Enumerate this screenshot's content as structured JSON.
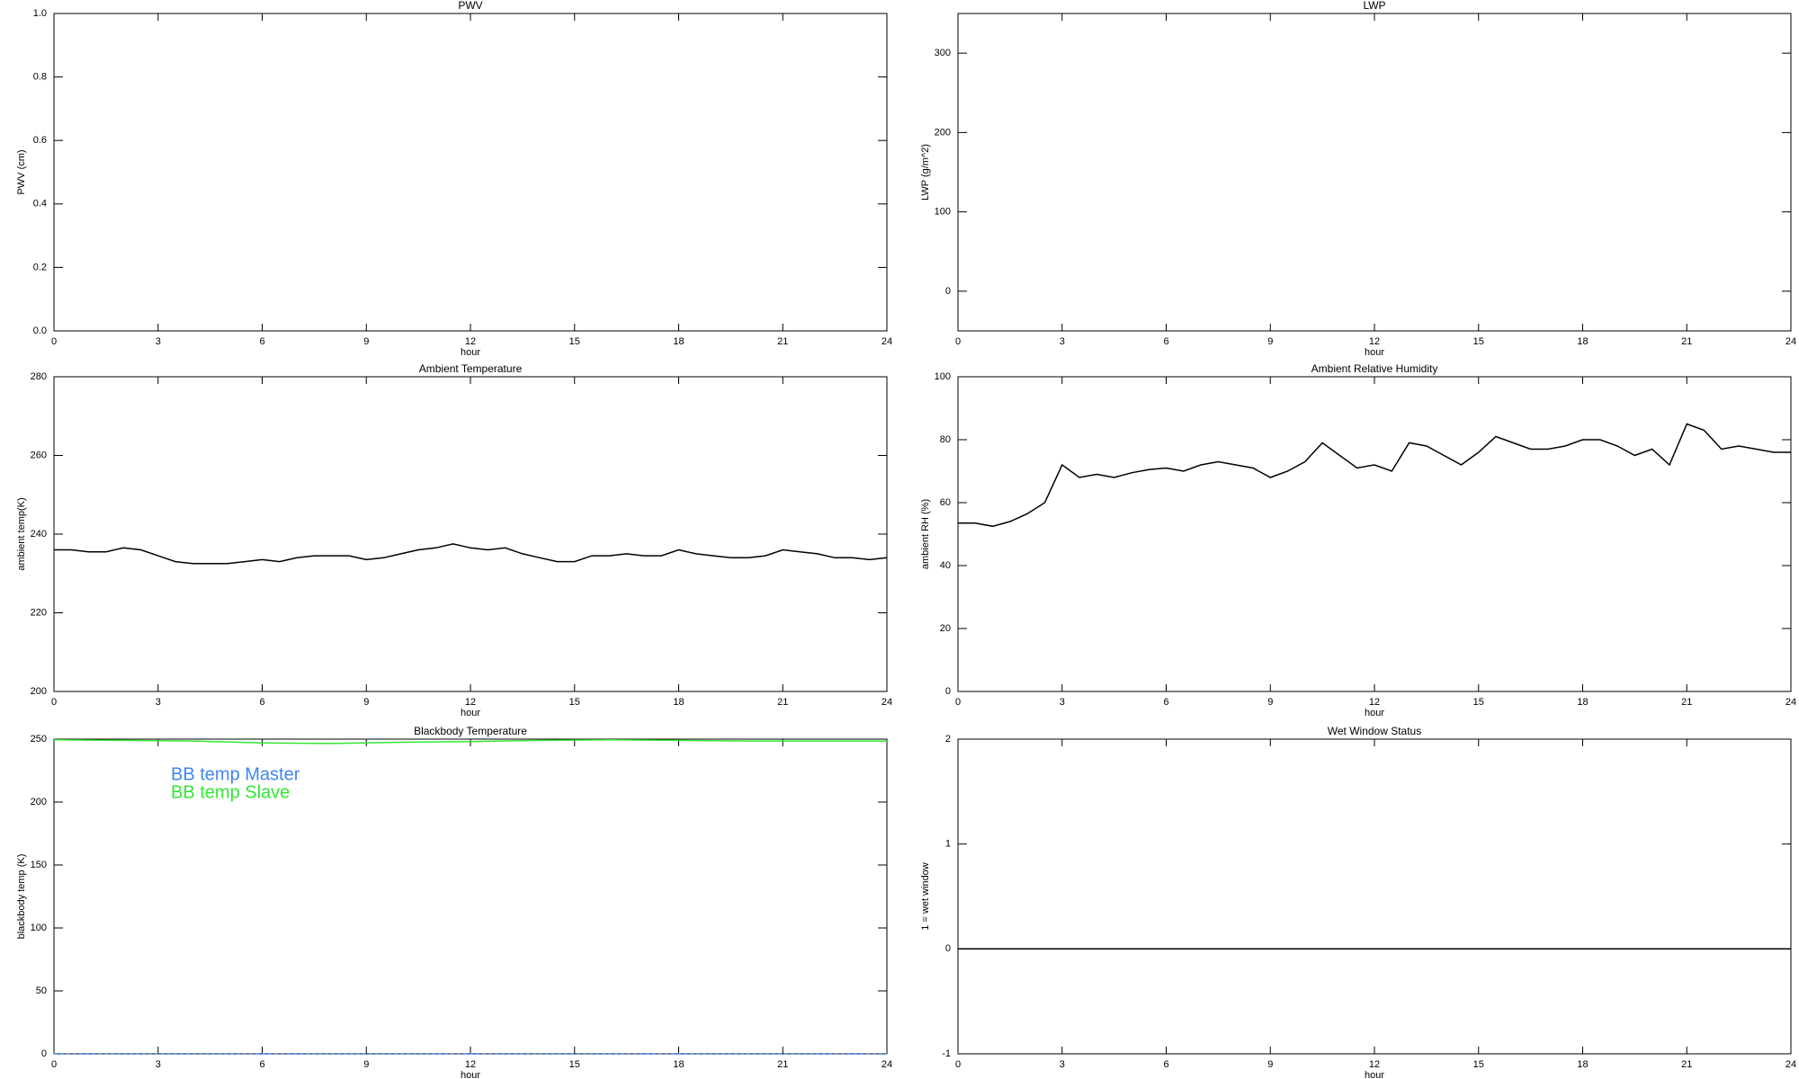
{
  "chart_data": [
    {
      "type": "line",
      "title": "PWV",
      "xlabel": "hour",
      "ylabel": "PWV (cm)",
      "xlim": [
        0,
        24
      ],
      "xticks": [
        0,
        3,
        6,
        9,
        12,
        15,
        18,
        21,
        24
      ],
      "ylim": [
        0,
        1
      ],
      "yticks": [
        {
          "value": 0,
          "label": "0.0"
        },
        0.2,
        0.4,
        0.6,
        0.8,
        {
          "value": 1,
          "label": "1.0"
        }
      ]
    },
    {
      "type": "line",
      "title": "LWP",
      "xlabel": "hour",
      "ylabel": "LWP (g/m^2)",
      "xlim": [
        0,
        24
      ],
      "xticks": [
        0,
        3,
        6,
        9,
        12,
        15,
        18,
        21,
        24
      ],
      "ylim": [
        -50,
        350
      ],
      "yticks": [
        0,
        100,
        200,
        300
      ]
    },
    {
      "type": "line",
      "title": "Ambient Temperature",
      "xlabel": "hour",
      "ylabel": "ambient temp(K)",
      "xlim": [
        0,
        24
      ],
      "xticks": [
        0,
        3,
        6,
        9,
        12,
        15,
        18,
        21,
        24
      ],
      "ylim": [
        200,
        280
      ],
      "yticks": [
        200,
        220,
        240,
        260,
        280
      ],
      "x": [
        0,
        0.5,
        1,
        1.5,
        2,
        2.5,
        3,
        3.5,
        4,
        4.5,
        5,
        5.5,
        6,
        6.5,
        7,
        7.5,
        8,
        8.5,
        9,
        9.5,
        10,
        10.5,
        11,
        11.5,
        12,
        12.5,
        13,
        13.5,
        14,
        14.5,
        15,
        15.5,
        16,
        16.5,
        17,
        17.5,
        18,
        18.5,
        19,
        19.5,
        20,
        20.5,
        21,
        21.5,
        22,
        22.5,
        23,
        23.5,
        24
      ],
      "series": [
        {
          "color": "#000000",
          "values": [
            236,
            236,
            235.5,
            235.5,
            236.5,
            236,
            234.5,
            233,
            232.5,
            232.5,
            232.5,
            233,
            233.5,
            233,
            234,
            234.5,
            234.5,
            234.5,
            233.5,
            234,
            235,
            236,
            236.5,
            237.5,
            236.5,
            236,
            236.5,
            235,
            234,
            233,
            233,
            234.5,
            234.5,
            235,
            234.5,
            234.5,
            236,
            235,
            234.5,
            234,
            234,
            234.5,
            236,
            235.5,
            235,
            234,
            234,
            233.5,
            234
          ]
        }
      ]
    },
    {
      "type": "line",
      "title": "Ambient Relative Humidity",
      "xlabel": "hour",
      "ylabel": "ambient RH (%)",
      "xlim": [
        0,
        24
      ],
      "xticks": [
        0,
        3,
        6,
        9,
        12,
        15,
        18,
        21,
        24
      ],
      "ylim": [
        0,
        100
      ],
      "yticks": [
        0,
        20,
        40,
        60,
        80,
        100
      ],
      "x": [
        0,
        0.5,
        1,
        1.5,
        2,
        2.5,
        3,
        3.5,
        4,
        4.5,
        5,
        5.5,
        6,
        6.5,
        7,
        7.5,
        8,
        8.5,
        9,
        9.5,
        10,
        10.5,
        11,
        11.5,
        12,
        12.5,
        13,
        13.5,
        14,
        14.5,
        15,
        15.5,
        16,
        16.5,
        17,
        17.5,
        18,
        18.5,
        19,
        19.5,
        20,
        20.5,
        21,
        21.5,
        22,
        22.5,
        23,
        23.5,
        24
      ],
      "series": [
        {
          "color": "#000000",
          "values": [
            53.5,
            53.5,
            52.5,
            54,
            56.5,
            60,
            72,
            68,
            69,
            68,
            69.5,
            70.5,
            71,
            70,
            72,
            73,
            72,
            71,
            68,
            70,
            73,
            79,
            75,
            71,
            72,
            70,
            79,
            78,
            75,
            72,
            76,
            81,
            79,
            77,
            77,
            78,
            80,
            80,
            78,
            75,
            77,
            72,
            85,
            83,
            77,
            78,
            77,
            76,
            76
          ]
        }
      ]
    },
    {
      "type": "line",
      "title": "Blackbody Temperature",
      "xlabel": "hour",
      "ylabel": "blackbody temp (K)",
      "xlim": [
        0,
        24
      ],
      "xticks": [
        0,
        3,
        6,
        9,
        12,
        15,
        18,
        21,
        24
      ],
      "ylim": [
        0,
        250
      ],
      "yticks": [
        0,
        50,
        100,
        150,
        200,
        250
      ],
      "x": [
        0,
        2,
        4,
        6,
        8,
        10,
        12,
        14,
        16,
        18,
        20,
        22,
        24
      ],
      "series": [
        {
          "name": "BB temp Master",
          "color": "#3f86ee",
          "values": [
            0,
            0,
            0,
            0,
            0,
            0,
            0,
            0,
            0,
            0,
            0,
            0,
            0
          ]
        },
        {
          "name": "BB temp Slave",
          "color": "#33e633",
          "values": [
            249.5,
            249,
            248.5,
            247,
            246.5,
            247.5,
            248,
            249,
            249.5,
            249,
            248.5,
            248.5,
            248.5
          ]
        }
      ]
    },
    {
      "type": "line",
      "title": "Wet Window Status",
      "xlabel": "hour",
      "ylabel": "1 = wet window",
      "xlim": [
        0,
        24
      ],
      "xticks": [
        0,
        3,
        6,
        9,
        12,
        15,
        18,
        21,
        24
      ],
      "ylim": [
        -1,
        2
      ],
      "yticks": [
        -1,
        0,
        1,
        2
      ],
      "x": [
        0,
        24
      ],
      "series": [
        {
          "color": "#000000",
          "values": [
            0,
            0
          ]
        }
      ]
    }
  ]
}
